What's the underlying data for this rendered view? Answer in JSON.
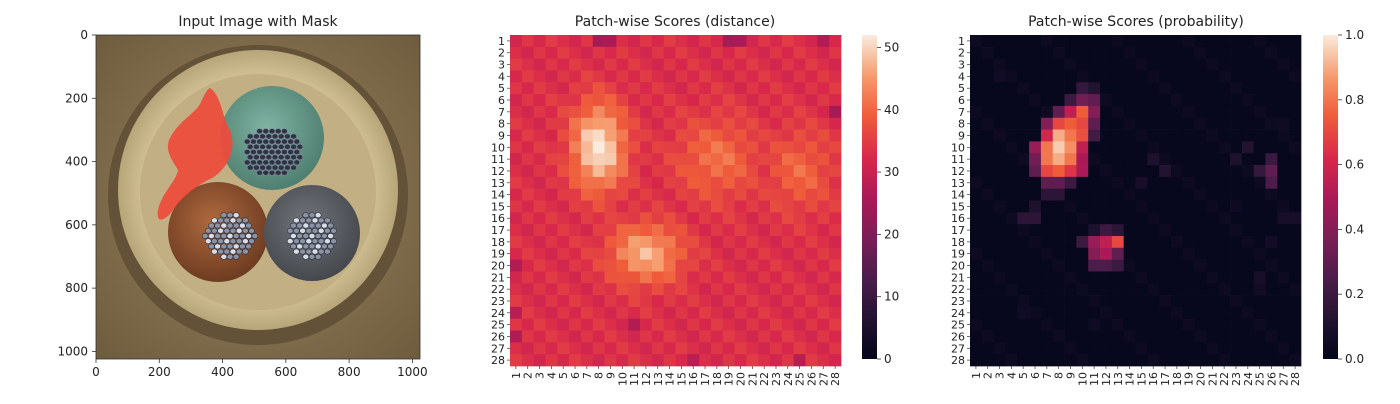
{
  "panels": {
    "input": {
      "title": "Input Image with Mask",
      "x_ticks": [
        0,
        200,
        400,
        600,
        800,
        1000
      ],
      "y_ticks": [
        0,
        200,
        400,
        600,
        800,
        1000
      ],
      "extent": [
        0,
        1024
      ],
      "colors": {
        "background": "#8a7550",
        "outer_ring": "#5e4c35",
        "insulation": "#cbb98f",
        "insulation_inner": "#b6a57b",
        "teal_wire": "#6a9e8d",
        "brown_wire": "#9a5a34",
        "gray_wire": "#5f6267",
        "strands": "#2f3444",
        "strands_light": "#aeb4c2",
        "mask": "#ef4b3c"
      }
    },
    "distance": {
      "title": "Patch-wise Scores (distance)",
      "colorbar": {
        "ticks": [
          0,
          10,
          20,
          30,
          40,
          50
        ],
        "min": 0,
        "max": 52
      }
    },
    "probability": {
      "title": "Patch-wise Scores (probability)",
      "colorbar": {
        "ticks": [
          "0.0",
          "0.2",
          "0.4",
          "0.6",
          "0.8",
          "1.0"
        ],
        "min": 0,
        "max": 1
      }
    }
  },
  "chart_data": [
    {
      "type": "image",
      "title": "Input Image with Mask",
      "x_ticks": [
        0,
        200,
        400,
        600,
        800,
        1000
      ],
      "y_ticks": [
        0,
        200,
        400,
        600,
        800,
        1000
      ],
      "xlim": [
        0,
        1024
      ],
      "ylim": [
        1024,
        0
      ]
    },
    {
      "type": "heatmap",
      "title": "Patch-wise Scores (distance)",
      "rows": [
        "1",
        "2",
        "3",
        "4",
        "5",
        "6",
        "7",
        "8",
        "9",
        "10",
        "11",
        "12",
        "13",
        "14",
        "15",
        "16",
        "17",
        "18",
        "19",
        "20",
        "21",
        "22",
        "23",
        "24",
        "25",
        "26",
        "27",
        "28"
      ],
      "cols": [
        "1",
        "2",
        "3",
        "4",
        "5",
        "6",
        "7",
        "8",
        "9",
        "10",
        "11",
        "12",
        "13",
        "14",
        "15",
        "16",
        "17",
        "18",
        "19",
        "20",
        "21",
        "22",
        "23",
        "24",
        "25",
        "26",
        "27",
        "28"
      ],
      "value_range": [
        0,
        52
      ],
      "baseline": 33,
      "hotspots": [
        {
          "row": 10,
          "col": 8,
          "peak": 52,
          "spread_row": 2.6,
          "spread_col": 1.6
        },
        {
          "row": 19,
          "col": 12,
          "peak": 47,
          "spread_row": 1.8,
          "spread_col": 2.2
        },
        {
          "row": 11,
          "col": 18,
          "peak": 41,
          "spread_row": 2.5,
          "spread_col": 2.5
        },
        {
          "row": 12,
          "col": 25,
          "peak": 40,
          "spread_row": 2.5,
          "spread_col": 2.0
        }
      ],
      "low_cells": [
        [
          1,
          8,
          25
        ],
        [
          1,
          9,
          26
        ],
        [
          1,
          19,
          25
        ],
        [
          1,
          20,
          26
        ],
        [
          1,
          27,
          27
        ],
        [
          7,
          28,
          25
        ],
        [
          20,
          1,
          27
        ],
        [
          24,
          1,
          28
        ],
        [
          26,
          1,
          27
        ],
        [
          25,
          11,
          27
        ],
        [
          28,
          16,
          28
        ],
        [
          28,
          25,
          28
        ]
      ]
    },
    {
      "type": "heatmap",
      "title": "Patch-wise Scores (probability)",
      "rows": [
        "1",
        "2",
        "3",
        "4",
        "5",
        "6",
        "7",
        "8",
        "9",
        "10",
        "11",
        "12",
        "13",
        "14",
        "15",
        "16",
        "17",
        "18",
        "19",
        "20",
        "21",
        "22",
        "23",
        "24",
        "25",
        "26",
        "27",
        "28"
      ],
      "cols": [
        "1",
        "2",
        "3",
        "4",
        "5",
        "6",
        "7",
        "8",
        "9",
        "10",
        "11",
        "12",
        "13",
        "14",
        "15",
        "16",
        "17",
        "18",
        "19",
        "20",
        "21",
        "22",
        "23",
        "24",
        "25",
        "26",
        "27",
        "28"
      ],
      "value_range": [
        0,
        1
      ],
      "cells": [
        [
          5,
          10,
          0.18
        ],
        [
          5,
          11,
          0.12
        ],
        [
          6,
          9,
          0.2
        ],
        [
          6,
          10,
          0.35
        ],
        [
          6,
          11,
          0.3
        ],
        [
          7,
          8,
          0.3
        ],
        [
          7,
          9,
          0.55
        ],
        [
          7,
          10,
          0.75
        ],
        [
          7,
          11,
          0.4
        ],
        [
          8,
          7,
          0.4
        ],
        [
          8,
          8,
          0.7
        ],
        [
          8,
          9,
          0.75
        ],
        [
          8,
          10,
          0.7
        ],
        [
          8,
          11,
          0.3
        ],
        [
          9,
          7,
          0.6
        ],
        [
          9,
          8,
          0.9
        ],
        [
          9,
          9,
          0.8
        ],
        [
          9,
          10,
          0.72
        ],
        [
          9,
          11,
          0.22
        ],
        [
          10,
          6,
          0.45
        ],
        [
          10,
          7,
          0.8
        ],
        [
          10,
          8,
          0.95
        ],
        [
          10,
          9,
          0.85
        ],
        [
          10,
          10,
          0.55
        ],
        [
          11,
          6,
          0.35
        ],
        [
          11,
          7,
          0.8
        ],
        [
          11,
          8,
          0.9
        ],
        [
          11,
          9,
          0.8
        ],
        [
          11,
          10,
          0.5
        ],
        [
          12,
          6,
          0.3
        ],
        [
          12,
          7,
          0.7
        ],
        [
          12,
          8,
          0.75
        ],
        [
          12,
          9,
          0.65
        ],
        [
          12,
          10,
          0.5
        ],
        [
          13,
          7,
          0.3
        ],
        [
          13,
          8,
          0.3
        ],
        [
          13,
          9,
          0.2
        ],
        [
          14,
          7,
          0.15
        ],
        [
          14,
          8,
          0.15
        ],
        [
          15,
          6,
          0.1
        ],
        [
          16,
          5,
          0.15
        ],
        [
          16,
          6,
          0.15
        ],
        [
          17,
          11,
          0.1
        ],
        [
          17,
          12,
          0.2
        ],
        [
          17,
          13,
          0.15
        ],
        [
          18,
          10,
          0.2
        ],
        [
          18,
          11,
          0.45
        ],
        [
          18,
          12,
          0.55
        ],
        [
          18,
          13,
          0.7
        ],
        [
          19,
          11,
          0.4
        ],
        [
          19,
          12,
          0.5
        ],
        [
          19,
          13,
          0.3
        ],
        [
          20,
          11,
          0.25
        ],
        [
          20,
          12,
          0.25
        ],
        [
          20,
          13,
          0.2
        ],
        [
          10,
          24,
          0.12
        ],
        [
          11,
          26,
          0.2
        ],
        [
          12,
          26,
          0.3
        ],
        [
          13,
          26,
          0.25
        ],
        [
          12,
          25,
          0.18
        ],
        [
          11,
          16,
          0.1
        ],
        [
          12,
          17,
          0.12
        ],
        [
          13,
          15,
          0.08
        ],
        [
          11,
          23,
          0.1
        ],
        [
          4,
          3,
          0.06
        ],
        [
          8,
          27,
          0.05
        ],
        [
          15,
          23,
          0.05
        ],
        [
          16,
          27,
          0.08
        ],
        [
          16,
          28,
          0.08
        ],
        [
          18,
          26,
          0.06
        ],
        [
          21,
          25,
          0.08
        ],
        [
          22,
          25,
          0.06
        ],
        [
          24,
          5,
          0.05
        ],
        [
          25,
          11,
          0.05
        ]
      ]
    }
  ]
}
